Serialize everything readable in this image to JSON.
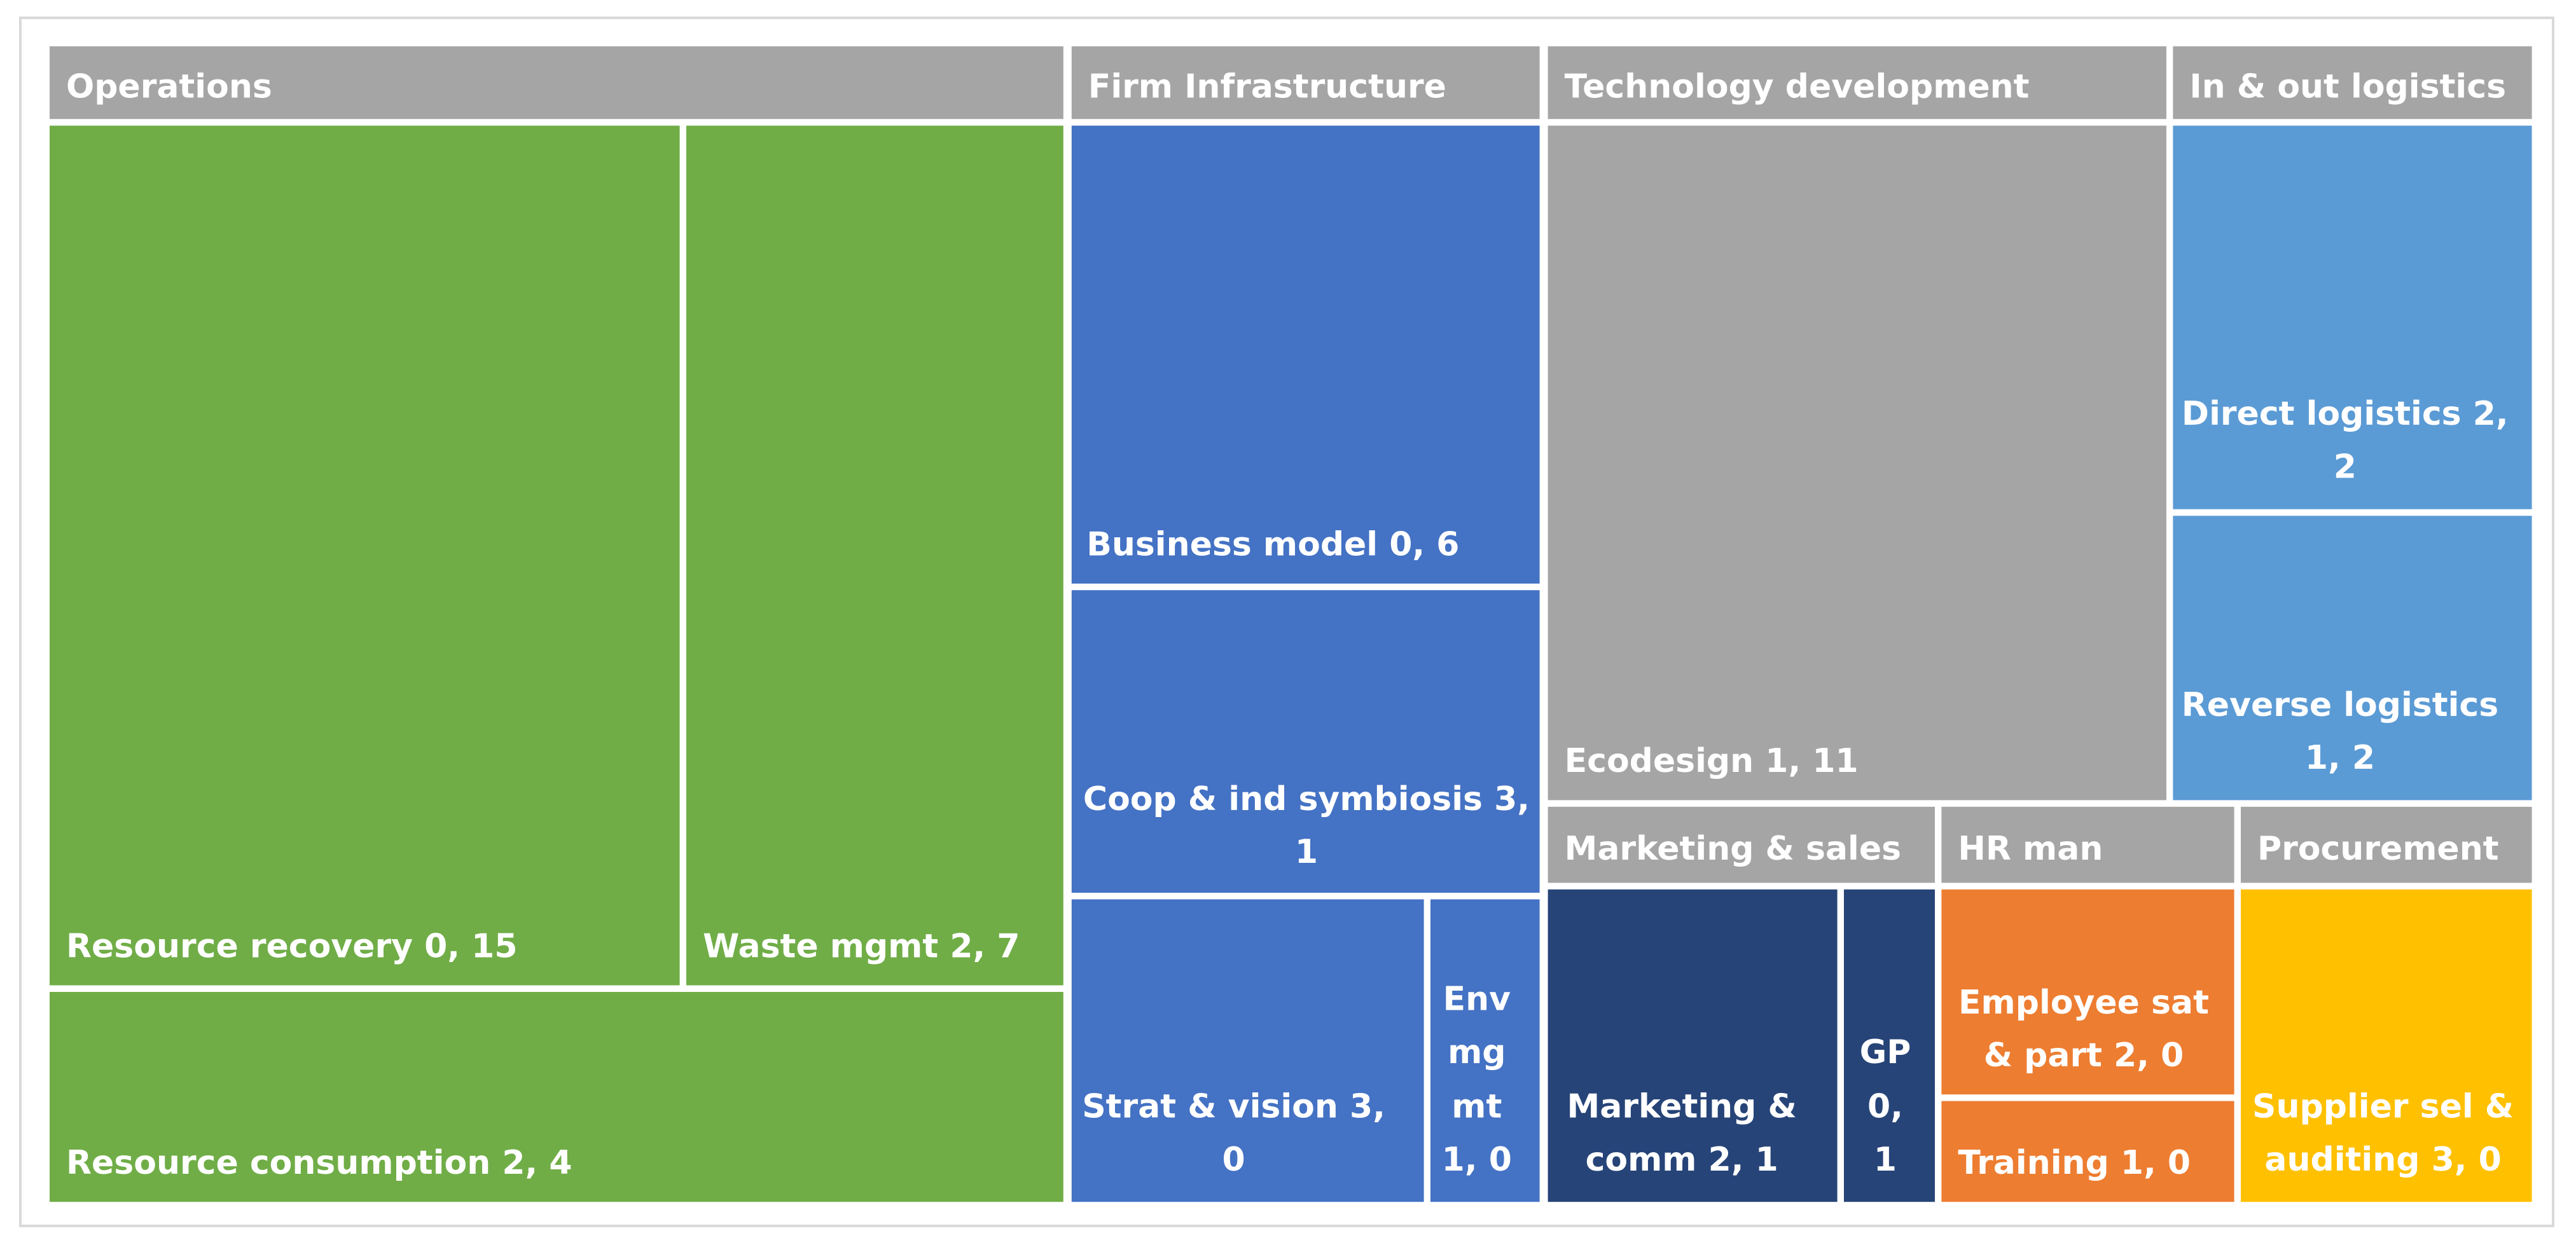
{
  "chart_data": {
    "type": "treemap",
    "groups": [
      {
        "name": "Operations",
        "header_color": "#a5a5a5",
        "items": [
          {
            "name": "Resource recovery",
            "label": "Resource recovery 0, 15",
            "values": [
              0,
              15
            ],
            "color": "#70ad47"
          },
          {
            "name": "Waste mgmt",
            "label": "Waste mgmt 2, 7",
            "values": [
              2,
              7
            ],
            "color": "#70ad47"
          },
          {
            "name": "Resource consumption",
            "label": "Resource consumption 2, 4",
            "values": [
              2,
              4
            ],
            "color": "#70ad47"
          }
        ]
      },
      {
        "name": "Firm Infrastructure",
        "header_color": "#a5a5a5",
        "items": [
          {
            "name": "Business model",
            "label": "Business model 0, 6",
            "values": [
              0,
              6
            ],
            "color": "#4472c4"
          },
          {
            "name": "Coop & ind symbiosis",
            "label": "Coop & ind symbiosis 3, 1",
            "values": [
              3,
              1
            ],
            "color": "#4472c4"
          },
          {
            "name": "Strat & vision",
            "label": "Strat & vision 3, 0",
            "values": [
              3,
              0
            ],
            "color": "#4472c4"
          },
          {
            "name": "Env mgmt",
            "label": "Env mg mt 1, 0",
            "values": [
              1,
              0
            ],
            "color": "#4472c4"
          }
        ]
      },
      {
        "name": "Technology development",
        "header_color": "#a5a5a5",
        "items": [
          {
            "name": "Ecodesign",
            "label": "Ecodesign 1, 11",
            "values": [
              1,
              11
            ],
            "color": "#a5a5a5"
          }
        ]
      },
      {
        "name": "In & out logistics",
        "header_color": "#a5a5a5",
        "items": [
          {
            "name": "Direct logistics",
            "label": "Direct logistics 2, 2",
            "values": [
              2,
              2
            ],
            "color": "#5b9bd5"
          },
          {
            "name": "Reverse logistics",
            "label": "Reverse logistics 1, 2",
            "values": [
              1,
              2
            ],
            "color": "#5b9bd5"
          }
        ]
      },
      {
        "name": "Marketing & sales",
        "header_color": "#a5a5a5",
        "items": [
          {
            "name": "Marketing & comm",
            "label": "Marketing & comm 2, 1",
            "values": [
              2,
              1
            ],
            "color": "#264478"
          },
          {
            "name": "GP",
            "label": "GP 0, 1",
            "values": [
              0,
              1
            ],
            "color": "#264478"
          }
        ]
      },
      {
        "name": "HR man",
        "header_color": "#a5a5a5",
        "items": [
          {
            "name": "Employee sat & part",
            "label": "Employee sat & part 2, 0",
            "values": [
              2,
              0
            ],
            "color": "#ed7d31"
          },
          {
            "name": "Training",
            "label": "Training 1, 0",
            "values": [
              1,
              0
            ],
            "color": "#ed7d31"
          }
        ]
      },
      {
        "name": "Procurement",
        "header_color": "#a5a5a5",
        "items": [
          {
            "name": "Supplier sel & auditing",
            "label": "Supplier sel & auditing 3, 0",
            "values": [
              3,
              0
            ],
            "color": "#ffc000"
          }
        ]
      }
    ]
  }
}
